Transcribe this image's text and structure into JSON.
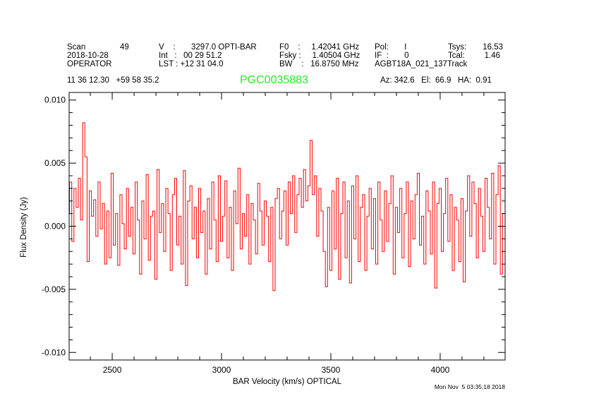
{
  "header": {
    "scan_label": "Scan",
    "scan_value": "49",
    "date": "2018-10-28",
    "operator": "OPERATOR",
    "ra_dec": "11 36 12.30   +59 58 35.2",
    "v": "V    :       3297.0 OPTI-BAR",
    "int": "Int   :   00 29 51.2",
    "lst": "LST : +12 31 04.0",
    "f0": "F0    :     1.42041 GHz",
    "fsky": "Fsky :     1.40504 GHz",
    "bw": "BW    :   16.8750 MHz",
    "pol": "Pol:       I",
    "if": "IF  :       0",
    "project": "AGBT18A_021_137Track",
    "tsys_label": "Tsys:",
    "tsys_value": "16.53",
    "tcal_label": "Tcal:",
    "tcal_value": "1.46",
    "az_el_ha": "Az: 342.6   El:  66.9   HA:  0.91",
    "source": "PGC0035883"
  },
  "footer": {
    "timestamp": "Mon Nov  5 03:35:18 2018"
  },
  "colors": {
    "series": "#ff0000",
    "source": "#22ee22",
    "axes": "#000000"
  },
  "chart_data": {
    "type": "line",
    "style": "histogram-step",
    "xlabel": "BAR Velocity (km/s) OPTICAL",
    "ylabel": "Flux Density (Jy)",
    "xlim": [
      2303,
      4297
    ],
    "ylim": [
      -0.0106,
      0.0106
    ],
    "xticks": [
      2500,
      3000,
      3500,
      4000
    ],
    "xtick_labels": [
      "2500",
      "3000",
      "3500",
      "4000"
    ],
    "yticks": [
      0.01,
      0.005,
      0.0,
      -0.005,
      -0.01
    ],
    "ytick_labels": [
      "0.010",
      "0.005",
      "0.000",
      "-0.005",
      "-0.010"
    ],
    "grid": false,
    "x_start": 2300,
    "x_step": 10,
    "values": [
      0.001,
      0.0035,
      -0.0012,
      0.003,
      0.0015,
      0.0038,
      0.0005,
      0.0082,
      0.0055,
      -0.0028,
      0.0028,
      0.0008,
      0.0021,
      -0.0008,
      0.0035,
      -0.0002,
      0.0018,
      -0.003,
      0.0012,
      -0.0025,
      0.0042,
      -0.0015,
      0.001,
      -0.0031,
      0.0025,
      0.0002,
      -0.0018,
      0.003,
      -0.0008,
      0.0015,
      -0.0022,
      0.0035,
      0.0005,
      -0.0038,
      0.002,
      -0.001,
      0.0041,
      -0.0027,
      0.0008,
      0.0012,
      -0.0042,
      0.0045,
      -0.0005,
      0.0018,
      -0.002,
      0.003,
      0.001,
      -0.0035,
      0.0025,
      0.0038,
      -0.0015,
      0.0008,
      -0.003,
      0.0044,
      -0.0047,
      0.002,
      0.0032,
      -0.001,
      0.0015,
      -0.0025,
      0.003,
      -0.0005,
      0.0012,
      -0.0038,
      0.0022,
      -0.0018,
      0.0035,
      0.0005,
      -0.0028,
      0.004,
      -0.0012,
      0.0008,
      0.0036,
      -0.0025,
      0.0015,
      -0.0035,
      0.0028,
      0.0002,
      0.0046,
      -0.0018,
      0.001,
      -0.0008,
      0.0025,
      -0.003,
      0.0018,
      0.0005,
      -0.0022,
      0.0034,
      0.0012,
      -0.0015,
      0.002,
      0.0008,
      -0.0028,
      0.0015,
      -0.0051,
      0.0022,
      0.003,
      -0.001,
      0.0012,
      0.0028,
      -0.0015,
      0.0035,
      0.001,
      0.004,
      -0.0005,
      0.0025,
      0.0038,
      0.0015,
      0.0045,
      0.002,
      0.0032,
      0.0068,
      0.0025,
      0.004,
      -0.0008,
      0.003,
      0.0012,
      -0.002,
      -0.0048,
      0.0015,
      -0.0035,
      0.0028,
      -0.0018,
      0.0038,
      -0.0042,
      0.001,
      0.0035,
      -0.0025,
      0.002,
      -0.0045,
      0.0032,
      -0.001,
      0.004,
      -0.0028,
      0.0015,
      0.0025,
      -0.0035,
      0.0008,
      0.003,
      -0.0018,
      0.0022,
      -0.003,
      0.0035,
      0.0005,
      -0.002,
      0.0028,
      -0.0012,
      0.0018,
      0.004,
      -0.0038,
      0.0015,
      -0.0005,
      0.003,
      -0.0025,
      0.001,
      0.0035,
      -0.0032,
      0.002,
      -0.001,
      0.0025,
      0.0042,
      -0.0015,
      0.0008,
      -0.003,
      0.0028,
      0.0012,
      -0.0022,
      0.0035,
      -0.0049,
      0.0018,
      0.003,
      -0.002,
      0.001,
      0.0038,
      -0.0012,
      0.0025,
      -0.0035,
      0.0015,
      0.0005,
      -0.0028,
      0.0022,
      -0.0044,
      0.0012,
      0.004,
      -0.0008,
      0.0035,
      0.0018,
      -0.0025,
      0.003,
      0.0008,
      -0.002,
      0.0038,
      0.0015,
      -0.001,
      0.0042,
      -0.003,
      0.0025,
      0.0048,
      -0.0038,
      0.001
    ]
  }
}
